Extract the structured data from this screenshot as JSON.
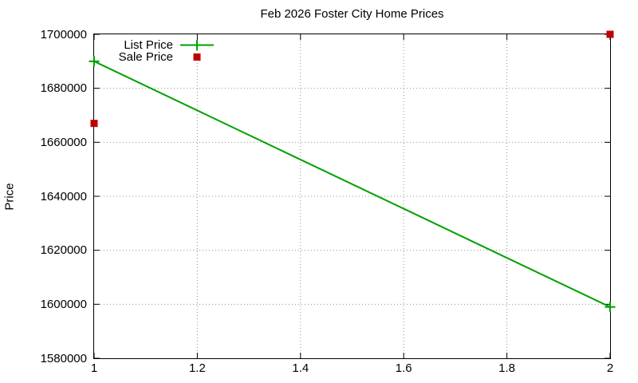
{
  "title": "Feb 2026 Foster City Home Prices",
  "colors": {
    "list_price": "#00a000",
    "sale_price": "#c00000",
    "grid": "#909090",
    "axis": "#000000",
    "background": "#ffffff"
  },
  "chart_data": {
    "type": "line",
    "title": "Feb 2026 Foster City Home Prices",
    "xlabel": "",
    "ylabel": "Price",
    "xlim": [
      1,
      2
    ],
    "ylim": [
      1580000,
      1700000
    ],
    "x_ticks": [
      1,
      1.2,
      1.4,
      1.6,
      1.8,
      2
    ],
    "x_tick_labels": [
      "1",
      "1.2",
      "1.4",
      "1.6",
      "1.8",
      "2"
    ],
    "y_ticks": [
      1580000,
      1600000,
      1620000,
      1640000,
      1660000,
      1680000,
      1700000
    ],
    "y_tick_labels": [
      "1580000",
      "1600000",
      "1620000",
      "1640000",
      "1660000",
      "1680000",
      "1700000"
    ],
    "grid": true,
    "legend_position": "top-left-inside",
    "series": [
      {
        "name": "List Price",
        "type": "line",
        "marker": "plus",
        "color": "#00a000",
        "x": [
          1,
          2
        ],
        "y": [
          1690000,
          1599000
        ]
      },
      {
        "name": "Sale Price",
        "type": "scatter",
        "marker": "square",
        "color": "#c00000",
        "x": [
          1,
          2
        ],
        "y": [
          1667000,
          1700000
        ]
      }
    ]
  }
}
